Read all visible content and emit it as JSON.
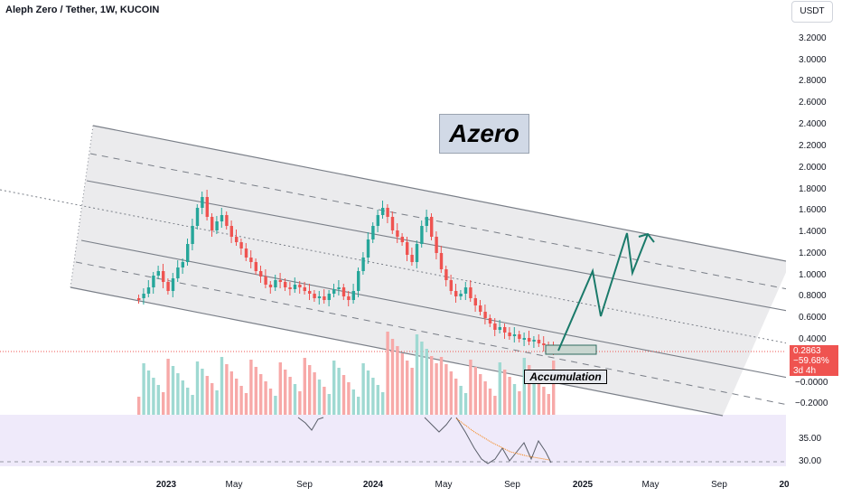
{
  "header": {
    "title": "Aleph Zero / Tether, 1W, KUCOIN",
    "currency": "USDT"
  },
  "price_axis": {
    "ticks": [
      "3.2000",
      "3.0000",
      "2.8000",
      "2.6000",
      "2.4000",
      "2.2000",
      "2.0000",
      "1.8000",
      "1.6000",
      "1.4000",
      "1.2000",
      "1.0000",
      "0.8000",
      "0.6000",
      "0.4000",
      "−0.0000",
      "−0.2000"
    ]
  },
  "price_badge": {
    "price": "0.2863",
    "change": "−59.68%",
    "countdown": "3d 4h",
    "color": "#ef5350"
  },
  "rsi_axis": {
    "ticks": [
      "35.00",
      "30.00"
    ]
  },
  "time_axis": {
    "labels": [
      "2023",
      "May",
      "Sep",
      "2024",
      "May",
      "Sep",
      "2025",
      "May",
      "Sep",
      "20"
    ]
  },
  "annotations": {
    "name_label": "Azero",
    "zone_label": "Accumulation"
  },
  "colors": {
    "up": "#26a69a",
    "down": "#ef5350",
    "projection": "#1a7a6a",
    "channel": "#7a7f88",
    "rsi_bg": "#efeafa"
  }
}
